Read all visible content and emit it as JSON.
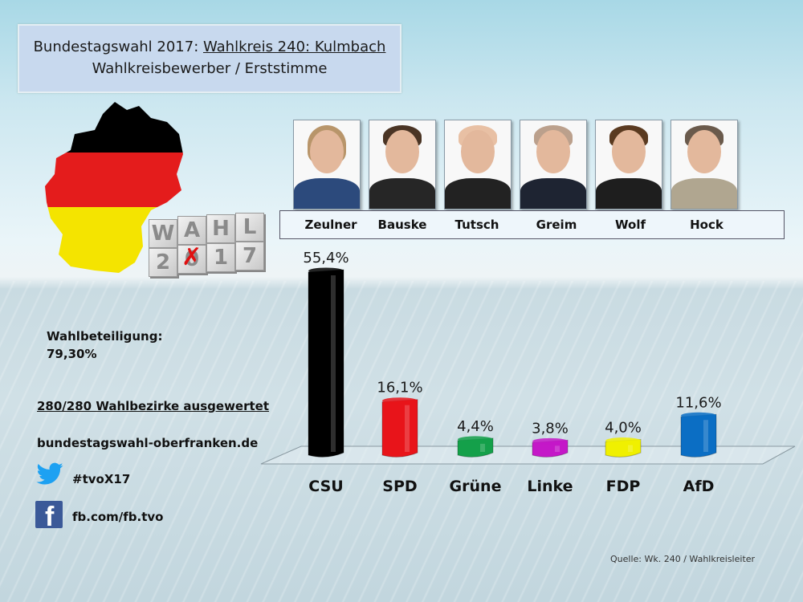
{
  "header": {
    "title_prefix": "Bundestagswahl 2017: ",
    "title_link": "Wahlkreis 240: Kulmbach",
    "subtitle": "Wahlkreisbewerber  / Erststimme"
  },
  "logo": {
    "wahl_letters": [
      "W",
      "A",
      "H",
      "L"
    ],
    "year_chars": [
      "2",
      "0",
      "1",
      "7"
    ]
  },
  "candidates": [
    {
      "name": "Zeulner"
    },
    {
      "name": "Bauske"
    },
    {
      "name": "Tutsch"
    },
    {
      "name": "Greim"
    },
    {
      "name": "Wolf"
    },
    {
      "name": "Hock"
    }
  ],
  "info": {
    "turnout_label": "Wahlbeteiligung:",
    "turnout_value": "79,30%",
    "districts": "280/280 Wahlbezirke ausgewertet",
    "website": "bundestagswahl-oberfranken.de",
    "twitter_icon": "twitter-bird-icon",
    "twitter": "#tvoX17",
    "facebook_icon": "facebook-icon",
    "facebook": "fb.com/fb.tvo"
  },
  "source": "Quelle: Wk. 240 / Wahlkreisleiter",
  "chart_data": {
    "type": "bar",
    "title": "Wahlkreisbewerber / Erststimme",
    "categories": [
      "CSU",
      "SPD",
      "Grüne",
      "Linke",
      "FDP",
      "AfD"
    ],
    "values": [
      55.4,
      16.1,
      4.4,
      3.8,
      4.0,
      11.6
    ],
    "value_labels": [
      "55,4%",
      "16,1%",
      "4,4%",
      "3,8%",
      "4,0%",
      "11,6%"
    ],
    "colors": [
      "#000000",
      "#e8141a",
      "#14a04a",
      "#c418c8",
      "#f0f000",
      "#0b6ec4"
    ],
    "xlabel": "",
    "ylabel": "",
    "ylim": [
      0,
      60
    ],
    "grid": false,
    "legend": "none"
  }
}
